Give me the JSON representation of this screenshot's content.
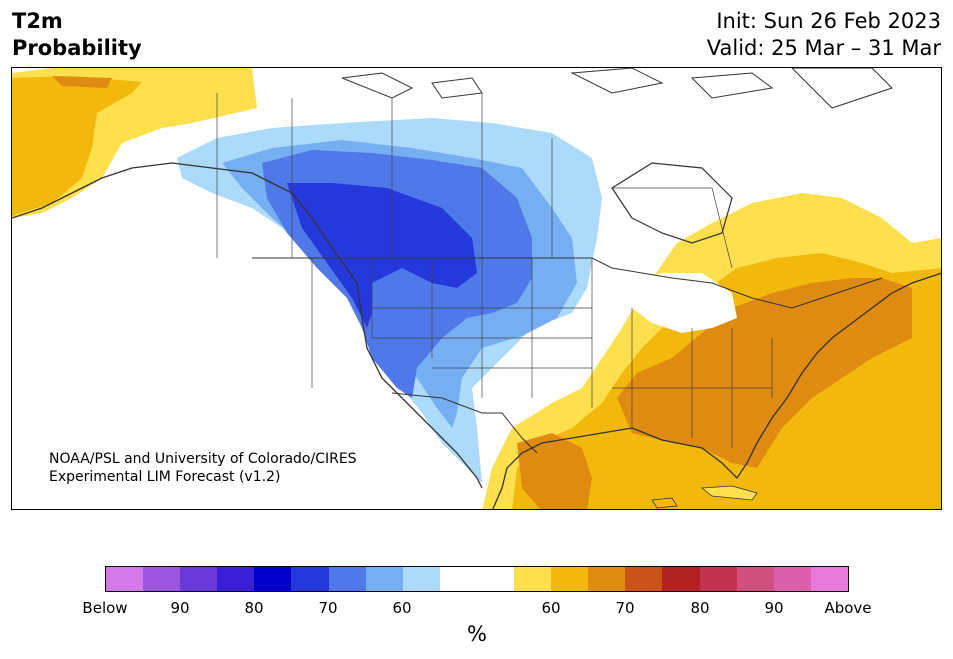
{
  "header": {
    "title_line1": "T2m",
    "title_line2": "Probability",
    "init": "Init: Sun 26 Feb 2023",
    "valid": "Valid: 25 Mar – 31 Mar"
  },
  "credit": {
    "line1": "NOAA/PSL and University of Colorado/CIRES",
    "line2": "Experimental LIM Forecast (v1.2)"
  },
  "colorbar": {
    "unit": "%",
    "colors": [
      "#d37ae8",
      "#9c55e0",
      "#6a3ad8",
      "#3a1fd6",
      "#0000cc",
      "#2438dc",
      "#4f78e8",
      "#76aef2",
      "#abdafb",
      "#ffffff",
      "#ffffff",
      "#fee04e",
      "#f2b80b",
      "#df8a10",
      "#c85418",
      "#b22222",
      "#c23352",
      "#cf507e",
      "#dc5fad",
      "#e878da"
    ],
    "ticks": [
      "Below",
      "90",
      "80",
      "70",
      "60",
      "60",
      "70",
      "80",
      "90",
      "Above"
    ]
  },
  "legend_colors": {
    "blue_light": "#abdafb",
    "blue_mid": "#76aef2",
    "blue": "#4f78e8",
    "blue_dark": "#2438dc",
    "yellow": "#fee04e",
    "gold": "#f2b80b",
    "orange": "#df8a10"
  }
}
